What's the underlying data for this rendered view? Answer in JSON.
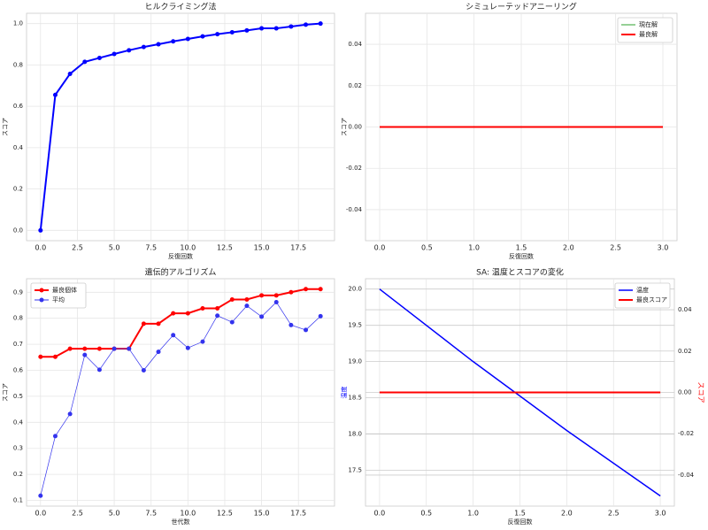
{
  "chart_data": [
    {
      "type": "line",
      "title": "ヒルクライミング法",
      "xlabel": "反復回数",
      "ylabel": "スコア",
      "grid": true,
      "x": [
        0,
        1,
        2,
        3,
        4,
        5,
        6,
        7,
        8,
        9,
        10,
        11,
        12,
        13,
        14,
        15,
        16,
        17,
        18,
        19
      ],
      "xlim": [
        -0.95,
        19.95
      ],
      "ylim": [
        -0.05,
        1.05
      ],
      "xticks": [
        {
          "value": 0,
          "label": "0.0"
        },
        {
          "value": 2.5,
          "label": "2.5"
        },
        {
          "value": 5,
          "label": "5.0"
        },
        {
          "value": 7.5,
          "label": "7.5"
        },
        {
          "value": 10,
          "label": "10.0"
        },
        {
          "value": 12.5,
          "label": "12.5"
        },
        {
          "value": 15,
          "label": "15.0"
        },
        {
          "value": 17.5,
          "label": "17.5"
        }
      ],
      "yticks": [
        {
          "value": 0,
          "label": "0.0"
        },
        {
          "value": 0.2,
          "label": "0.2"
        },
        {
          "value": 0.4,
          "label": "0.4"
        },
        {
          "value": 0.6,
          "label": "0.6"
        },
        {
          "value": 0.8,
          "label": "0.8"
        },
        {
          "value": 1,
          "label": "1.0"
        }
      ],
      "series": [
        {
          "color": "#0000ff",
          "marker": true,
          "linewidth": 2,
          "values": [
            0.0,
            0.655,
            0.757,
            0.815,
            0.834,
            0.853,
            0.871,
            0.887,
            0.9,
            0.914,
            0.926,
            0.938,
            0.949,
            0.958,
            0.967,
            0.977,
            0.977,
            0.986,
            0.995,
            1.0
          ]
        }
      ]
    },
    {
      "type": "line",
      "title": "シミュレーテッドアニーリング",
      "xlabel": "反復回数",
      "ylabel": "スコア",
      "grid": true,
      "legend": "upper right",
      "x": [
        0,
        1,
        2,
        3
      ],
      "xlim": [
        -0.15,
        3.15
      ],
      "ylim": [
        -0.055,
        0.055
      ],
      "xticks": [
        {
          "value": 0,
          "label": "0.0"
        },
        {
          "value": 0.5,
          "label": "0.5"
        },
        {
          "value": 1,
          "label": "1.0"
        },
        {
          "value": 1.5,
          "label": "1.5"
        },
        {
          "value": 2,
          "label": "2.0"
        },
        {
          "value": 2.5,
          "label": "2.5"
        },
        {
          "value": 3,
          "label": "3.0"
        }
      ],
      "yticks": [
        {
          "value": -0.04,
          "label": "-0.04"
        },
        {
          "value": -0.02,
          "label": "-0.02"
        },
        {
          "value": 0,
          "label": "0.00"
        },
        {
          "value": 0.02,
          "label": "0.02"
        },
        {
          "value": 0.04,
          "label": "0.04"
        }
      ],
      "series": [
        {
          "name": "現在解",
          "color": "#2ca02c",
          "marker": false,
          "linewidth": 1,
          "values": [
            0,
            0,
            0,
            0
          ]
        },
        {
          "name": "最良解",
          "color": "#ff0000",
          "marker": false,
          "linewidth": 2,
          "values": [
            0,
            0,
            0,
            0
          ]
        }
      ]
    },
    {
      "type": "line",
      "title": "遺伝的アルゴリズム",
      "xlabel": "世代数",
      "ylabel": "スコア",
      "grid": true,
      "legend": "upper left",
      "x": [
        0,
        1,
        2,
        3,
        4,
        5,
        6,
        7,
        8,
        9,
        10,
        11,
        12,
        13,
        14,
        15,
        16,
        17,
        18,
        19
      ],
      "xlim": [
        -0.95,
        19.95
      ],
      "ylim": [
        0.078,
        0.952
      ],
      "xticks": [
        {
          "value": 0,
          "label": "0.0"
        },
        {
          "value": 2.5,
          "label": "2.5"
        },
        {
          "value": 5,
          "label": "5.0"
        },
        {
          "value": 7.5,
          "label": "7.5"
        },
        {
          "value": 10,
          "label": "10.0"
        },
        {
          "value": 12.5,
          "label": "12.5"
        },
        {
          "value": 15,
          "label": "15.0"
        },
        {
          "value": 17.5,
          "label": "17.5"
        }
      ],
      "yticks": [
        0.1,
        0.2,
        0.3,
        0.4,
        0.5,
        0.6,
        0.7,
        0.8,
        0.9
      ],
      "series": [
        {
          "name": "最良個体",
          "color": "#ff0000",
          "marker": true,
          "linewidth": 2,
          "values": [
            0.652,
            0.652,
            0.683,
            0.683,
            0.683,
            0.683,
            0.683,
            0.779,
            0.779,
            0.819,
            0.819,
            0.838,
            0.838,
            0.872,
            0.872,
            0.888,
            0.888,
            0.9,
            0.912,
            0.912
          ]
        },
        {
          "name": "平均",
          "color": "#3333ee",
          "marker": true,
          "linewidth": 0.7,
          "values": [
            0.118,
            0.347,
            0.432,
            0.659,
            0.602,
            0.683,
            0.683,
            0.6,
            0.671,
            0.735,
            0.686,
            0.71,
            0.81,
            0.785,
            0.848,
            0.806,
            0.862,
            0.774,
            0.755,
            0.808
          ]
        }
      ]
    },
    {
      "type": "line",
      "title": "SA: 温度とスコアの変化",
      "xlabel": "反復回数",
      "ylabel": "温度",
      "y2label": "スコア",
      "grid": true,
      "legend": "upper right",
      "x": [
        0,
        1,
        2,
        3
      ],
      "xlim": [
        -0.15,
        3.15
      ],
      "ylim": [
        17.0075,
        20.1425
      ],
      "y2lim": [
        -0.055,
        0.055
      ],
      "xticks": [
        {
          "value": 0,
          "label": "0.0"
        },
        {
          "value": 0.5,
          "label": "0.5"
        },
        {
          "value": 1,
          "label": "1.0"
        },
        {
          "value": 1.5,
          "label": "1.5"
        },
        {
          "value": 2,
          "label": "2.0"
        },
        {
          "value": 2.5,
          "label": "2.5"
        },
        {
          "value": 3,
          "label": "3.0"
        }
      ],
      "yticks": [
        17.5,
        {
          "value": 18,
          "label": "18.0"
        },
        18.5,
        {
          "value": 19,
          "label": "19.0"
        },
        19.5,
        {
          "value": 20,
          "label": "20.0"
        }
      ],
      "y2ticks": [
        {
          "value": -0.04,
          "label": "-0.04"
        },
        {
          "value": -0.02,
          "label": "-0.02"
        },
        {
          "value": 0,
          "label": "0.00"
        },
        {
          "value": 0.02,
          "label": "0.02"
        },
        {
          "value": 0.04,
          "label": "0.04"
        }
      ],
      "series": [
        {
          "name": "温度",
          "color": "#0000ff",
          "marker": false,
          "linewidth": 1.5,
          "values": [
            20.0,
            19.0,
            18.05,
            17.1475
          ]
        },
        {
          "name": "最良スコア",
          "color": "#ff0000",
          "marker": false,
          "linewidth": 2,
          "axis": "y2",
          "values": [
            0,
            0,
            0,
            0
          ]
        }
      ]
    }
  ]
}
